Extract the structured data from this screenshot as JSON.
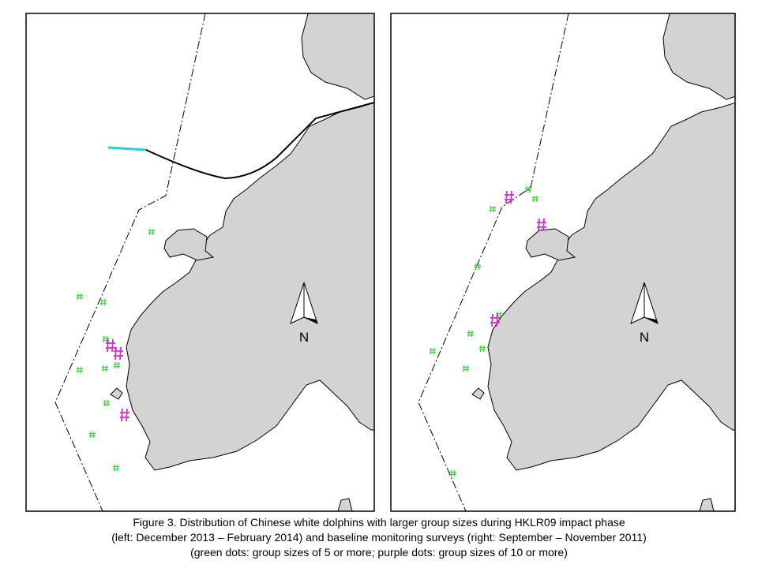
{
  "panels": [
    {
      "north_label": "N"
    },
    {
      "north_label": "N"
    }
  ],
  "caption": [
    "Figure 3. Distribution of Chinese white dolphins with larger group sizes during HKLR09 impact phase",
    "(left: December 2013 – February 2014) and baseline monitoring surveys (right: September – November 2011)",
    "(green dots: group sizes of 5 or more; purple dots: group sizes of 10 or more)"
  ]
}
